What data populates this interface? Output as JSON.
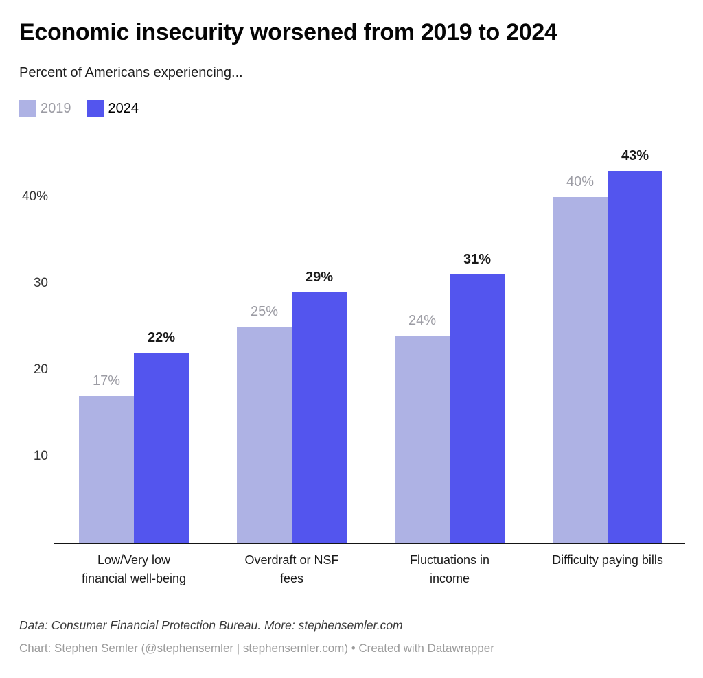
{
  "header": {
    "title": "Economic insecurity worsened from 2019 to 2024",
    "subtitle": "Percent of Americans experiencing..."
  },
  "chart_data": {
    "type": "bar",
    "title": "Economic insecurity worsened from 2019 to 2024",
    "subtitle": "Percent of Americans experiencing...",
    "categories": [
      "Low/Very low\nfinancial well-being",
      "Overdraft or NSF\nfees",
      "Fluctuations in\nincome",
      "Difficulty paying bills"
    ],
    "series": [
      {
        "name": "2019",
        "values": [
          17,
          25,
          24,
          40
        ],
        "color": "#aeb2e4",
        "label_color": "#9b9ba3",
        "legend_text_color": "#9b9ba3"
      },
      {
        "name": "2024",
        "values": [
          22,
          29,
          31,
          43
        ],
        "color": "#5355ee",
        "label_color": "#1a1a1a",
        "legend_text_color": "#000000"
      }
    ],
    "value_suffix": "%",
    "ylim": [
      0,
      47
    ],
    "yticks": [
      {
        "value": 10,
        "label": "10"
      },
      {
        "value": 20,
        "label": "20"
      },
      {
        "value": 30,
        "label": "30"
      },
      {
        "value": 40,
        "label": "40%"
      }
    ],
    "grid": false,
    "legend_position": "top-left",
    "xlabel": "",
    "ylabel": ""
  },
  "footer": {
    "source": "Data: Consumer Financial Protection Bureau. More: stephensemler.com",
    "byline": "Chart: Stephen Semler (@stephensemler | stephensemler.com) • Created with Datawrapper"
  }
}
